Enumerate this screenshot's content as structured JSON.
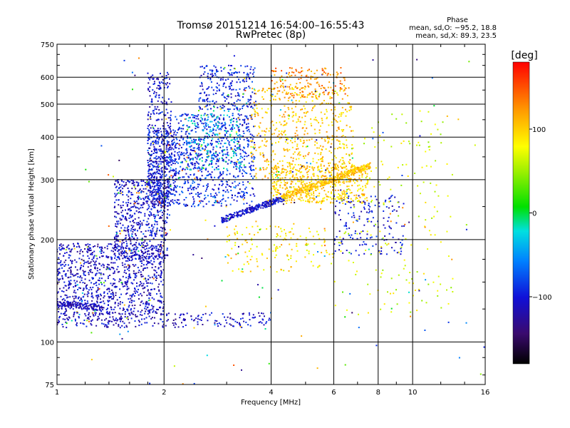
{
  "chart_data": {
    "type": "scatter",
    "title": "Tromsø 20151214 16:54:00–16:55:43",
    "subtitle": "RwPretec (8p)",
    "xlabel": "Frequency [MHz]",
    "ylabel": "Stationary phase Virtual Height [km]",
    "x_scale": "log",
    "y_scale": "log",
    "xlim": [
      1,
      16
    ],
    "ylim": [
      75,
      750
    ],
    "x_ticks": [
      1,
      2,
      4,
      6,
      8,
      10,
      16
    ],
    "x_tick_labels": [
      "1",
      "2",
      "4",
      "6",
      "8",
      "10",
      "16"
    ],
    "y_ticks": [
      75,
      100,
      200,
      300,
      400,
      500,
      600,
      750
    ],
    "y_tick_labels": [
      "75",
      "100",
      "200",
      "300",
      "400",
      "500",
      "600",
      "750"
    ],
    "x_gridlines": [
      2,
      4,
      6,
      8,
      10
    ],
    "y_gridlines": [
      100,
      200,
      300,
      400,
      500,
      600
    ],
    "grid": true,
    "stats": {
      "heading": "Phase",
      "line_o": "mean, sd,O: −95.2, 18.8",
      "line_x": "mean, sd,X:  89.3, 23.5"
    },
    "colorbar": {
      "label": "[deg]",
      "range": [
        -180,
        180
      ],
      "ticks": [
        100,
        0,
        -100
      ],
      "tick_labels": [
        "100",
        "0",
        "−100"
      ]
    },
    "clusters": [
      {
        "f": [
          1.0,
          2.0
        ],
        "h": [
          120,
          195
        ],
        "phase": -110,
        "n": 950
      },
      {
        "f": [
          1.45,
          2.05
        ],
        "h": [
          175,
          300
        ],
        "phase": -108,
        "n": 620
      },
      {
        "f": [
          1.8,
          2.15
        ],
        "h": [
          250,
          420
        ],
        "phase": -100,
        "n": 560
      },
      {
        "f": [
          1.8,
          2.1
        ],
        "h": [
          420,
          620
        ],
        "phase": -105,
        "n": 140
      },
      {
        "f": [
          2.15,
          3.6
        ],
        "h": [
          250,
          470
        ],
        "phase": -90,
        "n": 780
      },
      {
        "f": [
          2.3,
          3.3
        ],
        "h": [
          320,
          480
        ],
        "phase": -30,
        "n": 160
      },
      {
        "f": [
          2.5,
          3.6
        ],
        "h": [
          480,
          650
        ],
        "phase": -95,
        "n": 240
      },
      {
        "f": [
          3.5,
          6.8
        ],
        "h": [
          300,
          560
        ],
        "phase": 105,
        "n": 560
      },
      {
        "f": [
          4.0,
          7.5
        ],
        "h": [
          255,
          330
        ],
        "phase": 100,
        "n": 520
      },
      {
        "f": [
          4.0,
          6.5
        ],
        "h": [
          520,
          640
        ],
        "phase": 130,
        "n": 170
      },
      {
        "f": [
          6.0,
          9.5
        ],
        "h": [
          180,
          270
        ],
        "phase": -100,
        "n": 170
      },
      {
        "f": [
          3.0,
          6.0
        ],
        "h": [
          160,
          220
        ],
        "phase": 90,
        "n": 150
      },
      {
        "f": [
          1.0,
          4.0
        ],
        "h": [
          110,
          122
        ],
        "phase": -110,
        "n": 260
      },
      {
        "f": [
          6.0,
          13.0
        ],
        "h": [
          120,
          480
        ],
        "phase": 70,
        "n": 200
      },
      {
        "f": [
          1.2,
          16.0
        ],
        "h": [
          75,
          700
        ],
        "phase": 0,
        "n": 120
      }
    ],
    "arcs": [
      {
        "f_start": 2.9,
        "f_end": 4.4,
        "h_start": 228,
        "h_end": 266,
        "phase": -105,
        "n": 240
      },
      {
        "f_start": 4.3,
        "f_end": 7.6,
        "h_start": 266,
        "h_end": 330,
        "phase": 105,
        "n": 380
      },
      {
        "f_start": 1.0,
        "f_end": 1.35,
        "h_start": 130,
        "h_end": 126,
        "phase": -115,
        "n": 120
      }
    ]
  }
}
